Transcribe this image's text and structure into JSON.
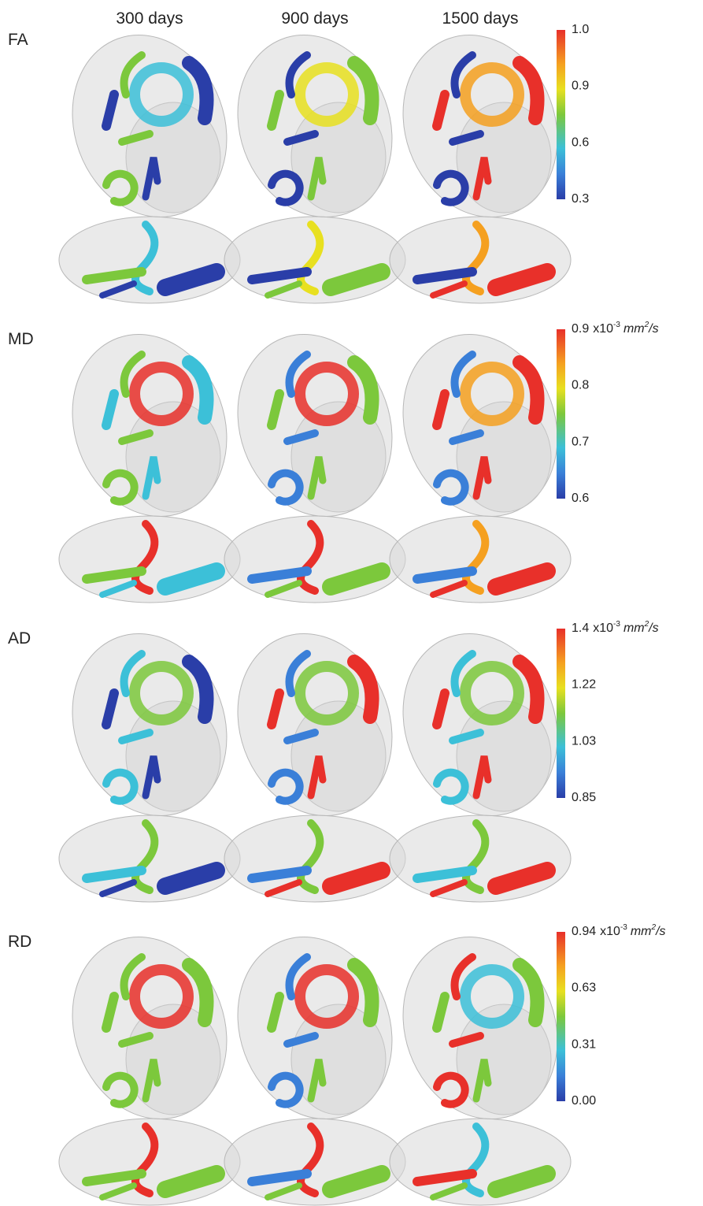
{
  "columns": [
    "300 days",
    "900 days",
    "1500 days"
  ],
  "rows": [
    {
      "label": "FA",
      "ticks": [
        "1.0",
        "0.9",
        "0.6",
        "0.3"
      ]
    },
    {
      "label": "MD",
      "ticks": [
        "0.9",
        "0.8",
        "0.7",
        "0.6"
      ],
      "unit": {
        "base": "x10",
        "base_exp": "-3",
        "unit": "mm",
        "unit_exp": "2",
        "tail": "/s"
      }
    },
    {
      "label": "AD",
      "ticks": [
        "1.4",
        "1.22",
        "1.03",
        "0.85"
      ],
      "unit": {
        "base": "x10",
        "base_exp": "-3",
        "unit": "mm",
        "unit_exp": "2",
        "tail": "/s"
      }
    },
    {
      "label": "RD",
      "ticks": [
        "0.94",
        "0.63",
        "0.31",
        "0.00"
      ],
      "unit": {
        "base": "x10",
        "base_exp": "-3",
        "unit": "mm",
        "unit_exp": "2",
        "tail": "/s"
      }
    }
  ]
}
